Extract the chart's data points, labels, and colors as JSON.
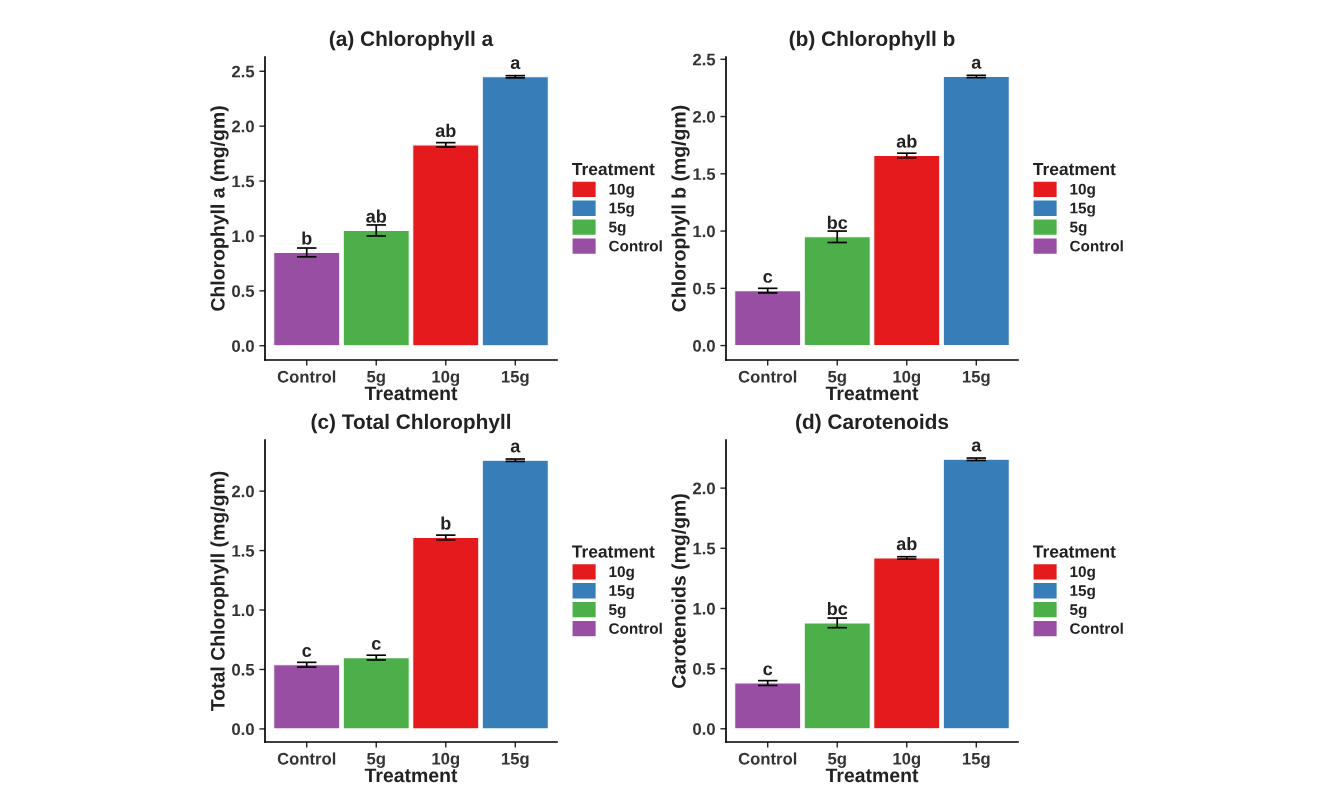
{
  "chart_data": [
    {
      "type": "bar",
      "title": "(a) Chlorophyll a",
      "xlabel": "Treatment",
      "ylabel": "Chlorophyll a (mg/gm)",
      "legend_title": "Treatment",
      "legend": "right",
      "grid": false,
      "categories": [
        "Control",
        "5g",
        "10g",
        "15g"
      ],
      "ylim": [
        -0.13,
        2.63
      ],
      "yticks": [
        {
          "value": 0,
          "label": "0.0"
        },
        0.5,
        {
          "value": 1,
          "label": "1.0"
        },
        1.5,
        {
          "value": 2,
          "label": "2.0"
        },
        2.5
      ],
      "series": [
        {
          "name": "10g",
          "color": "#e41a1c",
          "values": [
            null,
            null,
            1.83,
            null
          ],
          "errors": [
            null,
            null,
            0.02,
            null
          ]
        },
        {
          "name": "15g",
          "color": "#377eb8",
          "values": [
            null,
            null,
            null,
            2.45
          ],
          "errors": [
            null,
            null,
            null,
            0.01
          ]
        },
        {
          "name": "5g",
          "color": "#4daf4a",
          "values": [
            null,
            1.05,
            null,
            null
          ],
          "errors": [
            null,
            0.05,
            null,
            null
          ]
        },
        {
          "name": "Control",
          "color": "#984ea3",
          "values": [
            0.85,
            null,
            null,
            null
          ],
          "errors": [
            0.04,
            null,
            null,
            null
          ]
        }
      ],
      "annotations": [
        {
          "text": "b",
          "x": "Control",
          "y": 0.85
        },
        {
          "text": "ab",
          "x": "5g",
          "y": 1.05
        },
        {
          "text": "ab",
          "x": "10g",
          "y": 1.83
        },
        {
          "text": "a",
          "x": "15g",
          "y": 2.45
        }
      ]
    },
    {
      "type": "bar",
      "title": "(b) Chlorophyll b",
      "xlabel": "Treatment",
      "ylabel": "Chlorophyll b (mg/gm)",
      "legend_title": "Treatment",
      "legend": "right",
      "grid": false,
      "categories": [
        "Control",
        "5g",
        "10g",
        "15g"
      ],
      "ylim": [
        -0.126,
        2.52
      ],
      "yticks": [
        {
          "value": 0,
          "label": "0.0"
        },
        0.5,
        {
          "value": 1,
          "label": "1.0"
        },
        1.5,
        {
          "value": 2,
          "label": "2.0"
        },
        2.5
      ],
      "series": [
        {
          "name": "10g",
          "color": "#e41a1c",
          "values": [
            null,
            null,
            1.66,
            null
          ],
          "errors": [
            null,
            null,
            0.02,
            null
          ]
        },
        {
          "name": "15g",
          "color": "#377eb8",
          "values": [
            null,
            null,
            null,
            2.35
          ],
          "errors": [
            null,
            null,
            null,
            0.01
          ]
        },
        {
          "name": "5g",
          "color": "#4daf4a",
          "values": [
            null,
            0.95,
            null,
            null
          ],
          "errors": [
            null,
            0.05,
            null,
            null
          ]
        },
        {
          "name": "Control",
          "color": "#984ea3",
          "values": [
            0.48,
            null,
            null,
            null
          ],
          "errors": [
            0.02,
            null,
            null,
            null
          ]
        }
      ],
      "annotations": [
        {
          "text": "c",
          "x": "Control",
          "y": 0.48
        },
        {
          "text": "bc",
          "x": "5g",
          "y": 0.95
        },
        {
          "text": "ab",
          "x": "10g",
          "y": 1.66
        },
        {
          "text": "a",
          "x": "15g",
          "y": 2.35
        }
      ]
    },
    {
      "type": "bar",
      "title": "(c) Total Chlorophyll",
      "xlabel": "Treatment",
      "ylabel": "Total Chlorophyll (mg/gm)",
      "legend_title": "Treatment",
      "legend": "right",
      "grid": false,
      "categories": [
        "Control",
        "5g",
        "10g",
        "15g"
      ],
      "ylim": [
        -0.11,
        2.43
      ],
      "yticks": [
        {
          "value": 0,
          "label": "0.0"
        },
        0.5,
        {
          "value": 1,
          "label": "1.0"
        },
        1.5,
        {
          "value": 2,
          "label": "2.0"
        }
      ],
      "series": [
        {
          "name": "10g",
          "color": "#e41a1c",
          "values": [
            null,
            null,
            1.61,
            null
          ],
          "errors": [
            null,
            null,
            0.02,
            null
          ]
        },
        {
          "name": "15g",
          "color": "#377eb8",
          "values": [
            null,
            null,
            null,
            2.26
          ],
          "errors": [
            null,
            null,
            null,
            0.01
          ]
        },
        {
          "name": "5g",
          "color": "#4daf4a",
          "values": [
            null,
            0.6,
            null,
            null
          ],
          "errors": [
            null,
            0.02,
            null,
            null
          ]
        },
        {
          "name": "Control",
          "color": "#984ea3",
          "values": [
            0.54,
            null,
            null,
            null
          ],
          "errors": [
            0.02,
            null,
            null,
            null
          ]
        }
      ],
      "annotations": [
        {
          "text": "c",
          "x": "Control",
          "y": 0.54
        },
        {
          "text": "c",
          "x": "5g",
          "y": 0.6
        },
        {
          "text": "b",
          "x": "10g",
          "y": 1.61
        },
        {
          "text": "a",
          "x": "15g",
          "y": 2.26
        }
      ]
    },
    {
      "type": "bar",
      "title": "(d) Carotenoids",
      "xlabel": "Treatment",
      "ylabel": "Carotenoids (mg/gm)",
      "legend_title": "Treatment",
      "legend": "right",
      "grid": false,
      "categories": [
        "Control",
        "5g",
        "10g",
        "15g"
      ],
      "ylim": [
        -0.11,
        2.4
      ],
      "yticks": [
        {
          "value": 0,
          "label": "0.0"
        },
        0.5,
        {
          "value": 1,
          "label": "1.0"
        },
        1.5,
        {
          "value": 2,
          "label": "2.0"
        }
      ],
      "series": [
        {
          "name": "10g",
          "color": "#e41a1c",
          "values": [
            null,
            null,
            1.42,
            null
          ],
          "errors": [
            null,
            null,
            0.01,
            null
          ]
        },
        {
          "name": "15g",
          "color": "#377eb8",
          "values": [
            null,
            null,
            null,
            2.24
          ],
          "errors": [
            null,
            null,
            null,
            0.01
          ]
        },
        {
          "name": "5g",
          "color": "#4daf4a",
          "values": [
            null,
            0.88,
            null,
            null
          ],
          "errors": [
            null,
            0.04,
            null,
            null
          ]
        },
        {
          "name": "Control",
          "color": "#984ea3",
          "values": [
            0.38,
            null,
            null,
            null
          ],
          "errors": [
            0.02,
            null,
            null,
            null
          ]
        }
      ],
      "annotations": [
        {
          "text": "c",
          "x": "Control",
          "y": 0.38
        },
        {
          "text": "bc",
          "x": "5g",
          "y": 0.88
        },
        {
          "text": "ab",
          "x": "10g",
          "y": 1.42
        },
        {
          "text": "a",
          "x": "15g",
          "y": 2.24
        }
      ]
    }
  ]
}
